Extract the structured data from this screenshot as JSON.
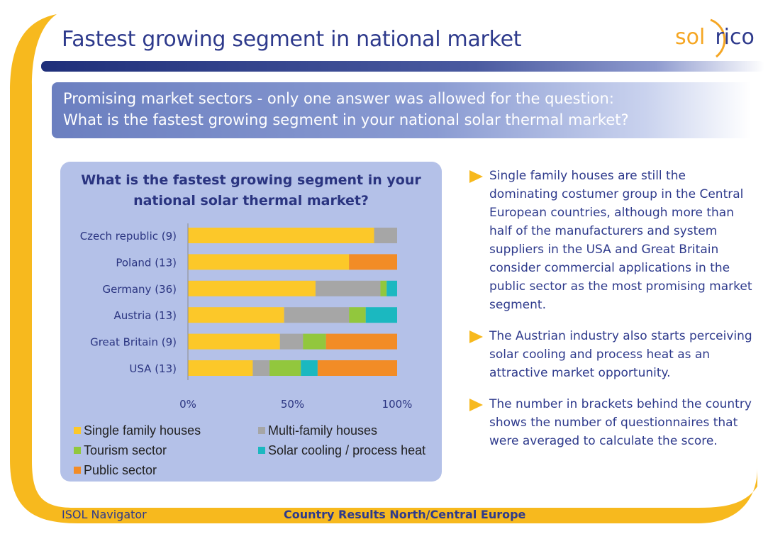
{
  "slide": {
    "title": "Fastest growing segment in national market",
    "banner_line1": "Promising market sectors - only one answer was allowed for the question:",
    "banner_line2": "What is the fastest growing segment in your national solar thermal market?",
    "footer_left": "ISOL Navigator",
    "footer_center": "Country Results North/Central Europe"
  },
  "logo": {
    "part1": "sol",
    "part2": "rico",
    "icon": "sun-arc-icon"
  },
  "colors": {
    "accent_yellow": "#f7b91e",
    "navy": "#2e3a8c",
    "panel": "#b4c1e8"
  },
  "bullets": [
    {
      "icon": "triangle-bullet-icon",
      "text": "Single family houses are still the dominating costumer group in the Central European countries, although more than half of the manufacturers and system suppliers in the USA and Great Britain consider commercial applications in the public sector as the most promising market segment."
    },
    {
      "icon": "triangle-bullet-icon",
      "text": "The Austrian industry also starts perceiving solar cooling and process heat as an attractive market opportunity."
    },
    {
      "icon": "triangle-bullet-icon",
      "text": "The number in brackets behind the country shows the number of questionnaires that were averaged to calculate the score."
    }
  ],
  "chart_data": {
    "type": "bar",
    "orientation": "horizontal",
    "stacked": true,
    "title": "What is the fastest growing segment in your national solar thermal market?",
    "categories": [
      "Czech republic (9)",
      "Poland (13)",
      "Germany (36)",
      "Austria (13)",
      "Great Britain (9)",
      "USA (13)"
    ],
    "series": [
      {
        "name": "Single family houses",
        "color": "#fcc829",
        "values": [
          89,
          77,
          61,
          46,
          44,
          31
        ]
      },
      {
        "name": "Multi-family houses",
        "color": "#a6a6a6",
        "values": [
          11,
          0,
          31,
          31,
          11,
          8
        ]
      },
      {
        "name": "Tourism sector",
        "color": "#92c73d",
        "values": [
          0,
          0,
          3,
          8,
          11,
          15
        ]
      },
      {
        "name": "Solar cooling / process heat",
        "color": "#1bb8c0",
        "values": [
          0,
          0,
          5,
          15,
          0,
          8
        ]
      },
      {
        "name": "Public sector",
        "color": "#f28c26",
        "values": [
          0,
          23,
          0,
          0,
          34,
          38
        ]
      }
    ],
    "xlim": [
      0,
      100
    ],
    "x_ticks": [
      "0%",
      "50%",
      "100%"
    ],
    "grid": false,
    "legend_position": "bottom"
  }
}
